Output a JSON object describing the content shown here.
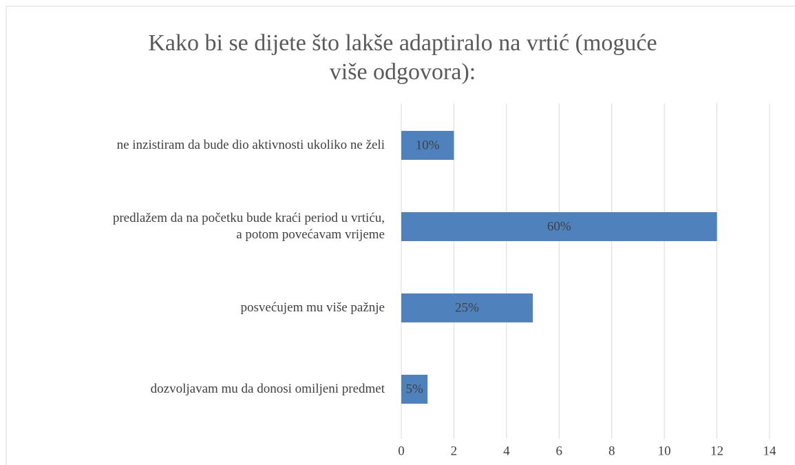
{
  "chart_data": {
    "type": "bar",
    "orientation": "horizontal",
    "title": "Kako bi se dijete što lakše adaptiralo na vrtić (moguće\nviše odgovora):",
    "categories": [
      "ne inzistiram da bude dio aktivnosti ukoliko ne želi",
      "predlažem da na početku bude kraći period u vrtiću,\na potom povećavam vrijeme",
      "posvećujem mu više pažnje",
      "dozvoljavam mu da donosi omiljeni predmet"
    ],
    "values": [
      2,
      12,
      5,
      1
    ],
    "value_labels": [
      "10%",
      "60%",
      "25%",
      "5%"
    ],
    "color": "#4f81bd",
    "xlim": [
      0,
      14
    ],
    "xticks": [
      0,
      2,
      4,
      6,
      8,
      10,
      12,
      14
    ],
    "grid": true
  }
}
